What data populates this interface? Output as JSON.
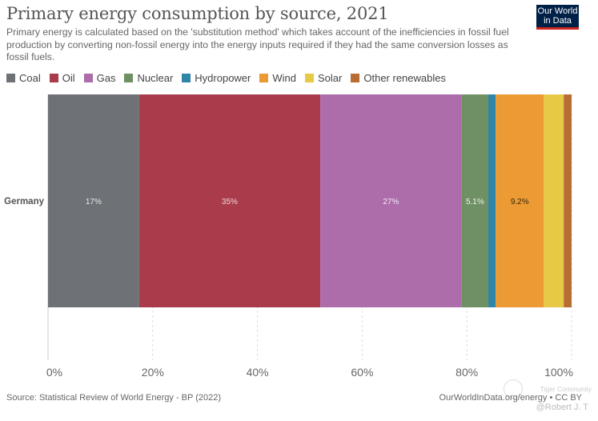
{
  "header": {
    "title": "Primary energy consumption by source, 2021",
    "subtitle": "Primary energy is calculated based on the 'substitution method' which takes account of the inefficiencies in fossil fuel production by converting non-fossil energy into the energy inputs required if they had the same conversion losses as fossil fuels.",
    "logo_line1": "Our World",
    "logo_line2": "in Data"
  },
  "footer": {
    "source": "Source: Statistical Review of World Energy - BP (2022)",
    "credit": "OurWorldInData.org/energy • CC BY",
    "watermark_line1": "Tiger Community",
    "watermark_line2": "@Robert J. T"
  },
  "chart_data": {
    "type": "bar",
    "orientation": "horizontal-stacked-100",
    "title": "Primary energy consumption by source, 2021",
    "categories": [
      "Germany"
    ],
    "xlabel": "",
    "ylabel": "",
    "xlim": [
      0,
      100
    ],
    "xticks": [
      0,
      20,
      40,
      60,
      80,
      100
    ],
    "xtick_labels": [
      "0%",
      "20%",
      "40%",
      "60%",
      "80%",
      "100%"
    ],
    "grid": "vertical dashed",
    "legend_position": "top",
    "series": [
      {
        "name": "Coal",
        "color": "#6e7176",
        "values": [
          17.4
        ],
        "label": "17%",
        "label_color": "#e8e8e8"
      },
      {
        "name": "Oil",
        "color": "#a93b4a",
        "values": [
          34.6
        ],
        "label": "35%",
        "label_color": "#f0d6da"
      },
      {
        "name": "Gas",
        "color": "#ad6dab",
        "values": [
          27.0
        ],
        "label": "27%",
        "label_color": "#f3e6f2"
      },
      {
        "name": "Nuclear",
        "color": "#6f9064",
        "values": [
          5.1
        ],
        "label": "5.1%",
        "label_color": "#eef3ec"
      },
      {
        "name": "Hydropower",
        "color": "#2f86a9",
        "values": [
          1.4
        ],
        "label": "",
        "label_color": "#fff"
      },
      {
        "name": "Wind",
        "color": "#ec9a33",
        "values": [
          9.2
        ],
        "label": "9.2%",
        "label_color": "#3a2a10"
      },
      {
        "name": "Solar",
        "color": "#e8c946",
        "values": [
          3.8
        ],
        "label": "",
        "label_color": "#333"
      },
      {
        "name": "Other renewables",
        "color": "#b86e33",
        "values": [
          1.5
        ],
        "label": "",
        "label_color": "#fff"
      }
    ]
  }
}
